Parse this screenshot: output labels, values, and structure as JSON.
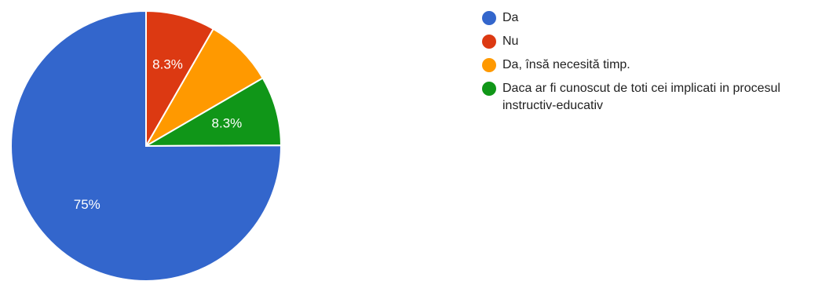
{
  "chart_data": {
    "type": "pie",
    "slices": [
      {
        "label": "Da",
        "value": 75,
        "display": "75%",
        "color": "#3366cc"
      },
      {
        "label": "Nu",
        "value": 8.3,
        "display": "8.3%",
        "color": "#dc3912"
      },
      {
        "label": "Da, însă necesită timp.",
        "value": 8.3,
        "display": "",
        "color": "#ff9900"
      },
      {
        "label": "Daca ar fi cunoscut de toti cei implicati in procesul instructiv-educativ",
        "value": 8.3,
        "display": "8.3%",
        "color": "#109618"
      }
    ],
    "legend_position": "right"
  }
}
